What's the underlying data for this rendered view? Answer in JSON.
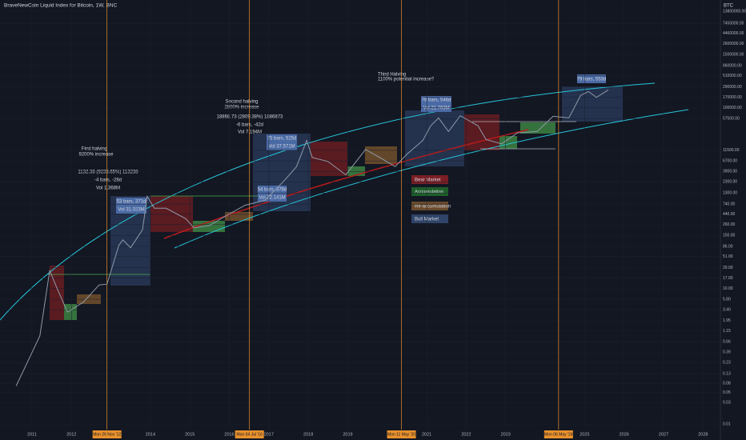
{
  "chart_data": {
    "type": "line",
    "title": "BraveNewCoin Liquid Index for Bitcoin, 1W, BNC",
    "currency": "BTC",
    "log_scale": true,
    "color": "#8f9aa8",
    "x": [
      2010.6,
      2010.9,
      2011.2,
      2011.45,
      2011.6,
      2011.9,
      2012.3,
      2012.7,
      2012.9,
      2013.2,
      2013.3,
      2013.5,
      2013.8,
      2013.92,
      2014.1,
      2014.4,
      2014.9,
      2015.1,
      2015.5,
      2015.9,
      2016.4,
      2016.9,
      2017.4,
      2017.7,
      2017.96,
      2018.1,
      2018.5,
      2018.95,
      2019.45,
      2019.9,
      2020.2,
      2020.5,
      2020.9,
      2021.1,
      2021.3,
      2021.55,
      2021.85,
      2022.3,
      2022.5,
      2022.9,
      2023.3,
      2023.8,
      2024.2,
      2024.6,
      2024.9,
      2025.1,
      2025.3,
      2025.6
    ],
    "values": [
      0.07,
      0.25,
      0.9,
      25,
      12,
      3,
      5,
      12,
      12.5,
      90,
      120,
      80,
      200,
      1100,
      600,
      600,
      350,
      220,
      250,
      400,
      700,
      900,
      2500,
      5000,
      19000,
      8000,
      6500,
      3300,
      12000,
      7200,
      5000,
      9500,
      19000,
      40000,
      60000,
      30000,
      67000,
      40000,
      20000,
      16000,
      28000,
      30000,
      65000,
      60000,
      190000,
      230000,
      170000,
      250000
    ],
    "xlim": [
      2010.19,
      2029.25
    ],
    "xticks": [
      2011,
      2012,
      2014,
      2015,
      2016,
      2017,
      2018,
      2019,
      2021,
      2022,
      2023,
      2025,
      2026,
      2027,
      2028
    ],
    "ylim": [
      0.0082,
      24400000
    ],
    "yticks": [
      {
        "value": 13800000,
        "label": "13800000.00"
      },
      {
        "value": 7450000,
        "label": "7450000.00"
      },
      {
        "value": 4460000,
        "label": "4460000.00"
      },
      {
        "value": 2600000,
        "label": "2600000.00"
      },
      {
        "value": 1500000,
        "label": "1500000.00"
      },
      {
        "value": 860000,
        "label": "860000.00"
      },
      {
        "value": 510000,
        "label": "510000.00"
      },
      {
        "value": 290000,
        "label": "290000.00"
      },
      {
        "value": 170000,
        "label": "170000.00"
      },
      {
        "value": 100000,
        "label": "100000.00"
      },
      {
        "value": 57500,
        "label": "57500.00"
      },
      {
        "value": 11500,
        "label": "11500.00"
      },
      {
        "value": 6700,
        "label": "6700.00"
      },
      {
        "value": 3900,
        "label": "3900.00"
      },
      {
        "value": 2300,
        "label": "2300.00"
      },
      {
        "value": 1300,
        "label": "1300.00"
      },
      {
        "value": 740,
        "label": "740.00"
      },
      {
        "value": 440,
        "label": "440.00"
      },
      {
        "value": 260,
        "label": "260.00"
      },
      {
        "value": 150,
        "label": "150.00"
      },
      {
        "value": 86,
        "label": "86.00"
      },
      {
        "value": 51,
        "label": "51.00"
      },
      {
        "value": 29,
        "label": "29.00"
      },
      {
        "value": 17,
        "label": "17.00"
      },
      {
        "value": 10,
        "label": "10.00"
      },
      {
        "value": 5.8,
        "label": "5.80"
      },
      {
        "value": 3.4,
        "label": "3.40"
      },
      {
        "value": 1.95,
        "label": "1.95"
      },
      {
        "value": 1.15,
        "label": "1.15"
      },
      {
        "value": 0.66,
        "label": "0.66"
      },
      {
        "value": 0.39,
        "label": "0.39"
      },
      {
        "value": 0.23,
        "label": "0.23"
      },
      {
        "value": 0.13,
        "label": "0.13"
      },
      {
        "value": 0.08,
        "label": "0.08"
      },
      {
        "value": 0.05,
        "label": "0.05"
      },
      {
        "value": 0.03,
        "label": "0.03"
      },
      {
        "value": 0.01,
        "label": "0.01"
      }
    ],
    "halvings": [
      {
        "x": 2012.9,
        "label": "Mon 26 Nov '12"
      },
      {
        "x": 2016.51,
        "label": "Mon 04 Jul '16"
      },
      {
        "x": 2020.36,
        "label": "Mon 11 May '20"
      },
      {
        "x": 2024.34,
        "label": "Mon 06 May '24"
      }
    ],
    "annotations": [
      "First halving",
      "9200% increase",
      "1132.38 (9233.65%) 113238",
      "-4 bars, -28d",
      "Vol 1.368M",
      "53 bars, 371d",
      "Vol 31.023M",
      "Second halving",
      "2800% increase",
      "18868.73 (2809.38%) 1886873",
      "-6 bars, -42d",
      "Vol 7.194M",
      "75 bars, 525d",
      "Vol 37.571M",
      "54 bars, 378d",
      "Vol 22.141M",
      "Third Halving",
      "1100% potential increase?",
      "78 bars, 546d",
      "Vol 21.763M",
      "79 bars, 553d"
    ],
    "legend": [
      "Bear Market",
      "Accumulation",
      "Re-accumulation",
      "Bull Market"
    ]
  }
}
